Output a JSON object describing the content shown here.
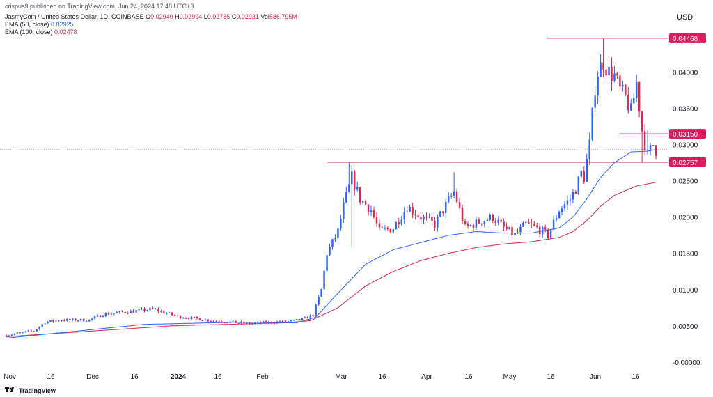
{
  "header": {
    "publisher": "crispus9 published on TradingView.com, Jun 24, 2024 17:48 UTC+3",
    "symbol": "JasmyCoin / United States Dollar, 1D, COINBASE",
    "ohlc": {
      "o_label": "O",
      "o": "0.02949",
      "h_label": "H",
      "h": "0.02994",
      "l_label": "L",
      "l": "0.02785",
      "c_label": "C",
      "c": "0.02931",
      "vol_label": "Vol",
      "vol": "586.795M"
    },
    "ema50_label": "EMA (50, close)",
    "ema50_value": "0.02925",
    "ema100_label": "EMA (100, close)",
    "ema100_value": "0.02478",
    "currency": "USD"
  },
  "footer": {
    "brand": "TradingView"
  },
  "colors": {
    "up": "#2962ff",
    "down": "#e0244c",
    "ema50": "#2962ff",
    "ema100": "#e0244c",
    "level": "#e0185c"
  },
  "chart_data": {
    "type": "candlestick",
    "x_ticks": [
      "Nov",
      "16",
      "Dec",
      "16",
      "2024",
      "16",
      "Feb",
      "Mar",
      "16",
      "Apr",
      "16",
      "May",
      "16",
      "Jun",
      "16"
    ],
    "y_ticks": [
      "0.04000",
      "0.03500",
      "0.03000",
      "0.02500",
      "0.02000",
      "0.01500",
      "0.01000",
      "0.00500",
      "-0.00000"
    ],
    "ylim": [
      -0.0005,
      0.0465
    ],
    "levels": [
      {
        "label": "0.04468",
        "value": 0.04468
      },
      {
        "label": "0.03150",
        "value": 0.0315
      },
      {
        "label": "0.02757",
        "value": 0.02757
      }
    ],
    "current_price": 0.02931,
    "close_anchors": [
      [
        0,
        0.0037
      ],
      [
        10,
        0.0043
      ],
      [
        14,
        0.0055
      ],
      [
        20,
        0.0058
      ],
      [
        30,
        0.0058
      ],
      [
        35,
        0.0066
      ],
      [
        45,
        0.007
      ],
      [
        53,
        0.0073
      ],
      [
        62,
        0.0063
      ],
      [
        75,
        0.0057
      ],
      [
        88,
        0.0053
      ],
      [
        96,
        0.0055
      ],
      [
        103,
        0.0056
      ],
      [
        108,
        0.006
      ],
      [
        111,
        0.0065
      ],
      [
        114,
        0.01
      ],
      [
        116,
        0.015
      ],
      [
        118,
        0.0165
      ],
      [
        120,
        0.018
      ],
      [
        122,
        0.0215
      ],
      [
        125,
        0.0255
      ],
      [
        128,
        0.0225
      ],
      [
        132,
        0.021
      ],
      [
        135,
        0.018
      ],
      [
        140,
        0.0185
      ],
      [
        145,
        0.0215
      ],
      [
        150,
        0.02
      ],
      [
        155,
        0.019
      ],
      [
        158,
        0.021
      ],
      [
        162,
        0.0235
      ],
      [
        166,
        0.0185
      ],
      [
        172,
        0.0195
      ],
      [
        176,
        0.02
      ],
      [
        180,
        0.0185
      ],
      [
        184,
        0.0175
      ],
      [
        188,
        0.019
      ],
      [
        192,
        0.0185
      ],
      [
        196,
        0.0175
      ],
      [
        200,
        0.021
      ],
      [
        204,
        0.0225
      ],
      [
        206,
        0.024
      ],
      [
        208,
        0.026
      ],
      [
        209,
        0.0255
      ],
      [
        211,
        0.03
      ],
      [
        213,
        0.038
      ],
      [
        214,
        0.04
      ],
      [
        216,
        0.0415
      ],
      [
        218,
        0.04
      ],
      [
        220,
        0.0395
      ],
      [
        222,
        0.0375
      ],
      [
        224,
        0.0365
      ],
      [
        226,
        0.0345
      ],
      [
        228,
        0.0385
      ],
      [
        230,
        0.032
      ],
      [
        232,
        0.0285
      ],
      [
        234,
        0.03
      ],
      [
        235,
        0.0293
      ]
    ],
    "ema50_anchors": [
      [
        0,
        0.0033
      ],
      [
        50,
        0.0052
      ],
      [
        85,
        0.0055
      ],
      [
        105,
        0.0054
      ],
      [
        112,
        0.0062
      ],
      [
        120,
        0.0095
      ],
      [
        130,
        0.0135
      ],
      [
        140,
        0.0155
      ],
      [
        150,
        0.0165
      ],
      [
        160,
        0.0175
      ],
      [
        170,
        0.018
      ],
      [
        180,
        0.0178
      ],
      [
        190,
        0.0178
      ],
      [
        200,
        0.0185
      ],
      [
        205,
        0.02
      ],
      [
        210,
        0.0225
      ],
      [
        215,
        0.0255
      ],
      [
        220,
        0.0275
      ],
      [
        226,
        0.029
      ],
      [
        232,
        0.0291
      ],
      [
        235,
        0.0293
      ]
    ],
    "ema100_anchors": [
      [
        0,
        0.0035
      ],
      [
        60,
        0.005
      ],
      [
        100,
        0.0054
      ],
      [
        110,
        0.0057
      ],
      [
        120,
        0.0075
      ],
      [
        130,
        0.0105
      ],
      [
        140,
        0.0125
      ],
      [
        150,
        0.014
      ],
      [
        160,
        0.015
      ],
      [
        170,
        0.0158
      ],
      [
        180,
        0.0163
      ],
      [
        190,
        0.0166
      ],
      [
        200,
        0.0172
      ],
      [
        205,
        0.018
      ],
      [
        210,
        0.0195
      ],
      [
        215,
        0.0215
      ],
      [
        220,
        0.023
      ],
      [
        228,
        0.0243
      ],
      [
        235,
        0.0248
      ]
    ],
    "wick_events": [
      {
        "bar": 124,
        "high": 0.0276
      },
      {
        "bar": 125,
        "low": 0.0158
      },
      {
        "bar": 162,
        "high": 0.0262
      },
      {
        "bar": 216,
        "high": 0.04468
      },
      {
        "bar": 230,
        "low": 0.0275
      },
      {
        "bar": 232,
        "high": 0.032
      }
    ]
  }
}
